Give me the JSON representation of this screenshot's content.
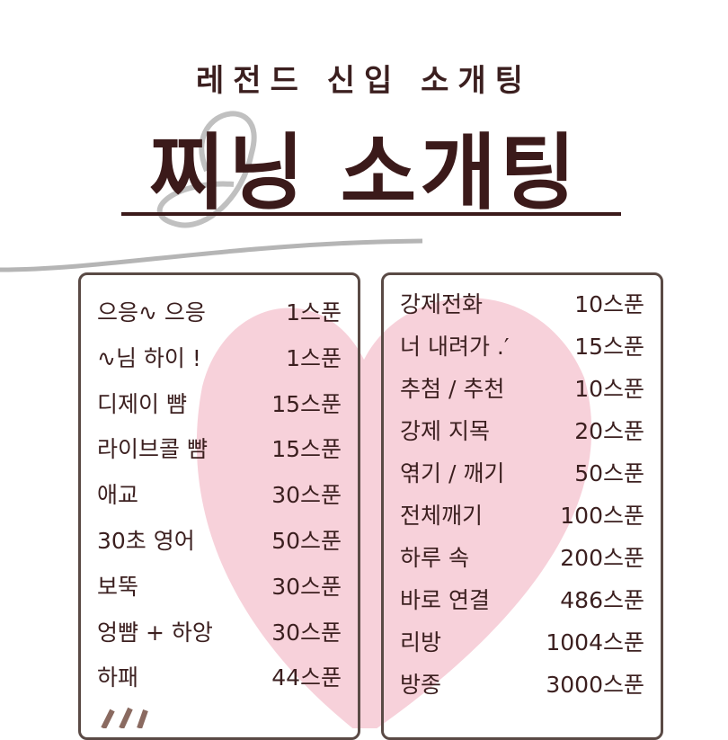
{
  "header": {
    "subtitle": "레전드 신입 소개팅",
    "title": "찌닝 소개팅"
  },
  "colors": {
    "text": "#3b1f1f",
    "heart": "#f6c9d3",
    "border": "#5a4a45",
    "swoosh": "#b5b5b5"
  },
  "menu_left": [
    {
      "name": "으응∿ 으응",
      "price": "1스푼"
    },
    {
      "name": "∿님 하이 !",
      "price": "1스푼"
    },
    {
      "name": "디제이 뺨",
      "price": "15스푼"
    },
    {
      "name": "라이브콜 뺨",
      "price": "15스푼"
    },
    {
      "name": "애교",
      "price": "30스푼"
    },
    {
      "name": "30초 영어",
      "price": "50스푼"
    },
    {
      "name": "보뚝",
      "price": "30스푼"
    },
    {
      "name": "엉뺨 + 하앙",
      "price": "30스푼"
    },
    {
      "name": "하패",
      "price": "44스푼"
    }
  ],
  "menu_right": [
    {
      "name": "강제전화",
      "price": "10스푼"
    },
    {
      "name": "너 내려가 .′",
      "price": "15스푼"
    },
    {
      "name": "추첨 / 추천",
      "price": "10스푼"
    },
    {
      "name": "강제 지목",
      "price": "20스푼"
    },
    {
      "name": "엮기 / 깨기",
      "price": "50스푼"
    },
    {
      "name": "전체깨기",
      "price": "100스푼"
    },
    {
      "name": "하루 속",
      "price": "200스푼"
    },
    {
      "name": "바로 연결",
      "price": "486스푼"
    },
    {
      "name": "리방",
      "price": "1004스푼"
    },
    {
      "name": "방종",
      "price": "3000스푼"
    }
  ]
}
